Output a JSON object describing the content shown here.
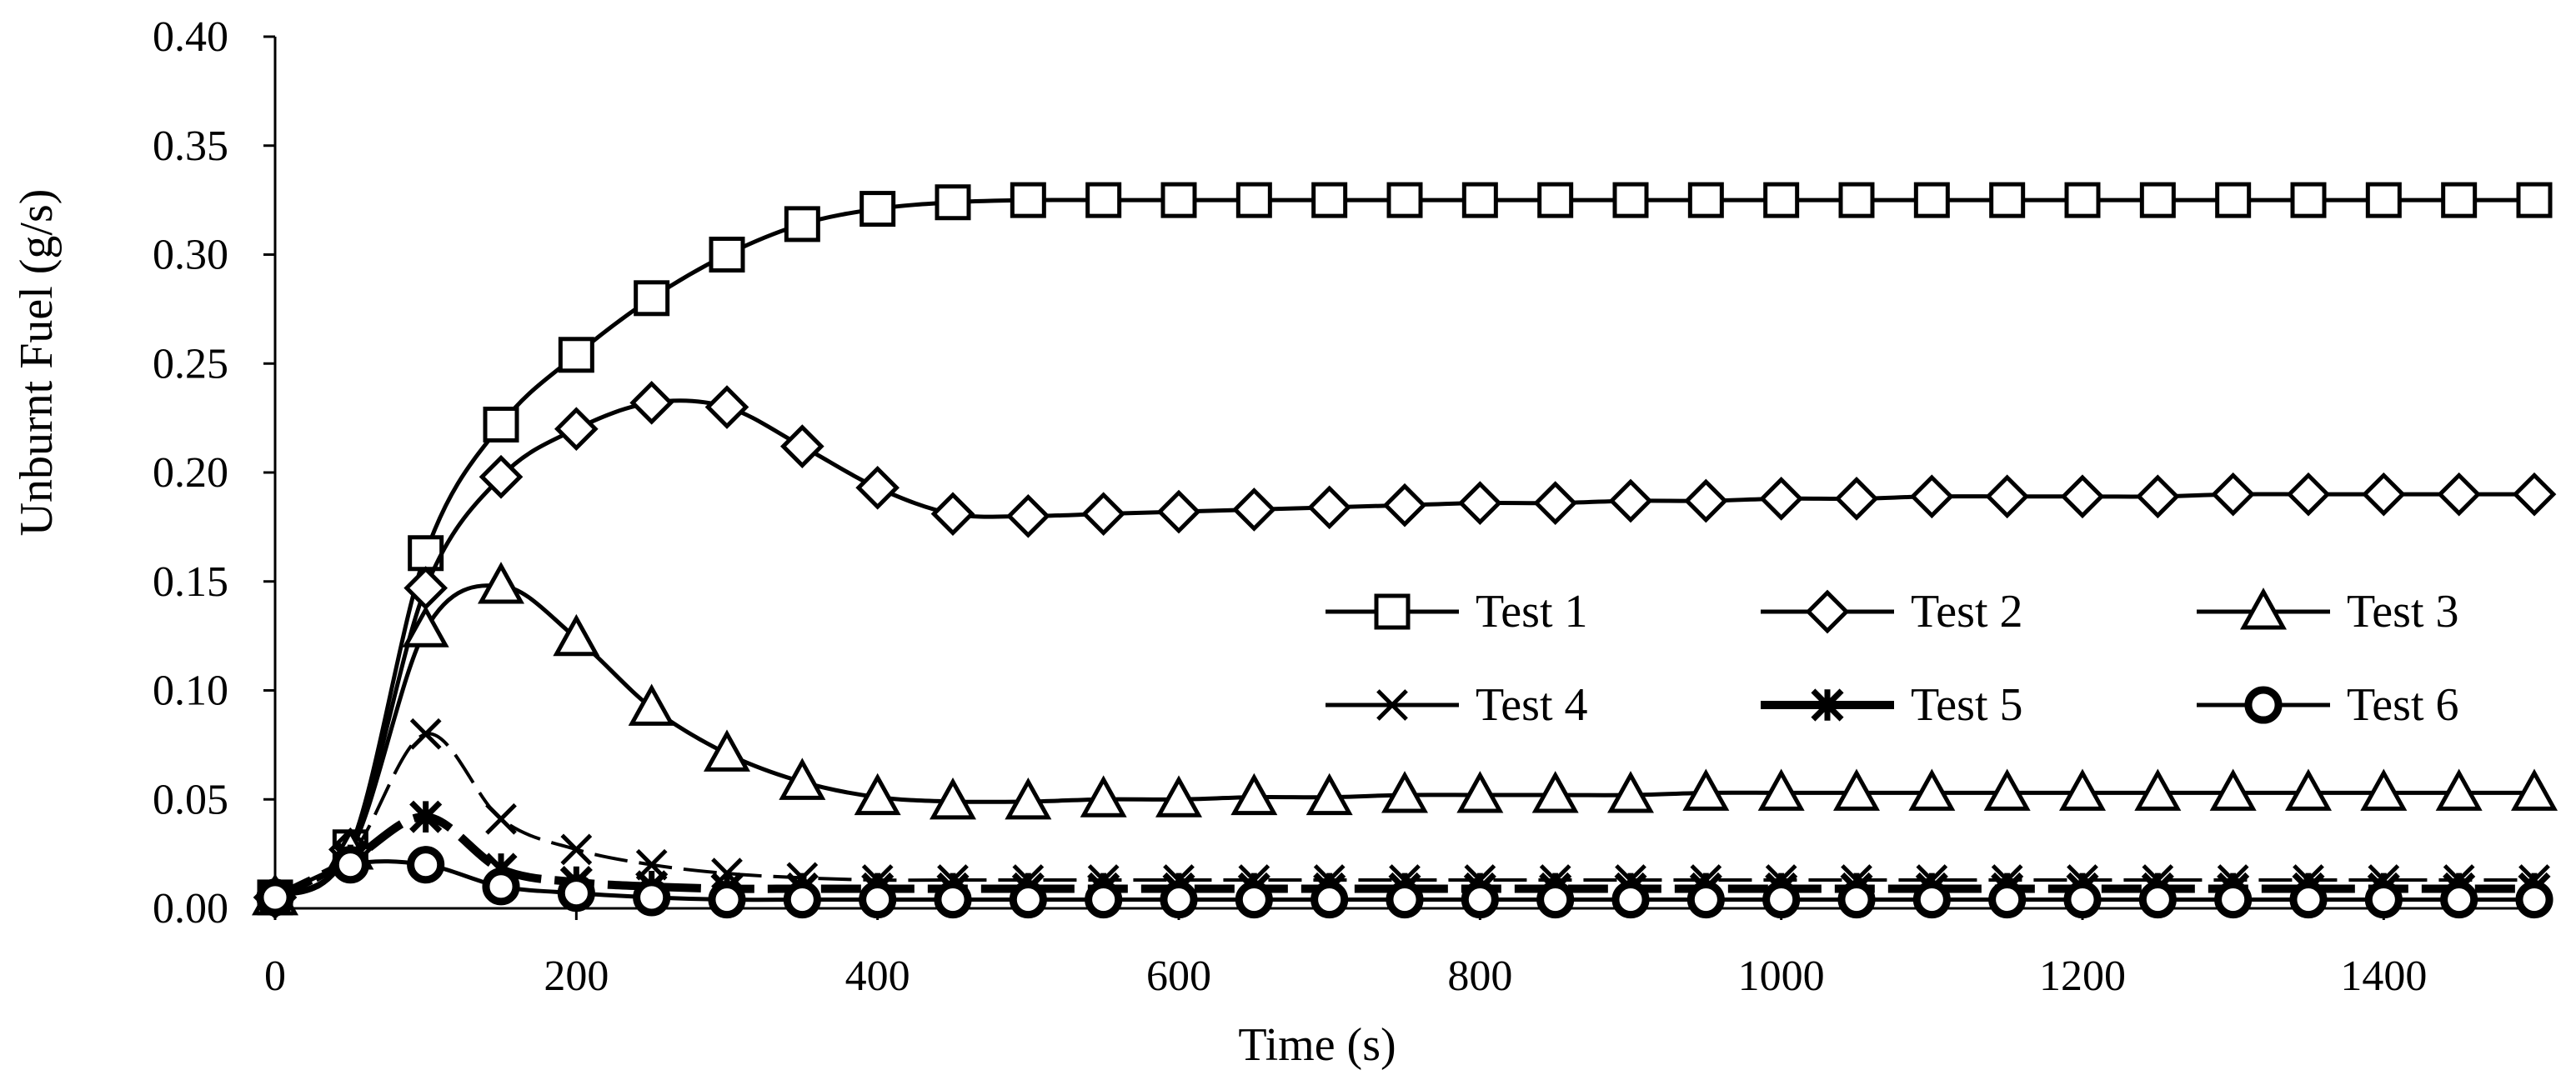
{
  "chart_data": {
    "type": "line",
    "title": "",
    "xlabel": "Time (s)",
    "ylabel": "Unburnt Fuel (g/s)",
    "xlim": [
      0,
      1500
    ],
    "ylim": [
      0,
      0.4
    ],
    "xticks": [
      0,
      200,
      400,
      600,
      800,
      1000,
      1200,
      1400
    ],
    "xtick_labels": [
      "0",
      "200",
      "400",
      "600",
      "800",
      "1000",
      "1200",
      "1400"
    ],
    "yticks": [
      0,
      0.05,
      0.1,
      0.15,
      0.2,
      0.25,
      0.3,
      0.35,
      0.4
    ],
    "ytick_labels": [
      "0.00",
      "0.05",
      "0.10",
      "0.15",
      "0.20",
      "0.25",
      "0.30",
      "0.35",
      "0.40"
    ],
    "grid": false,
    "legend_position": "center-right",
    "x": [
      0,
      50,
      100,
      150,
      200,
      250,
      300,
      350,
      400,
      450,
      500,
      550,
      600,
      650,
      700,
      750,
      800,
      850,
      900,
      950,
      1000,
      1050,
      1100,
      1150,
      1200,
      1250,
      1300,
      1350,
      1400,
      1450,
      1500
    ],
    "series": [
      {
        "name": "Test 1",
        "marker": "square",
        "values": [
          0.005,
          0.028,
          0.163,
          0.222,
          0.254,
          0.28,
          0.3,
          0.314,
          0.321,
          0.324,
          0.325,
          0.325,
          0.325,
          0.325,
          0.325,
          0.325,
          0.325,
          0.325,
          0.325,
          0.325,
          0.325,
          0.325,
          0.325,
          0.325,
          0.325,
          0.325,
          0.325,
          0.325,
          0.325,
          0.325,
          0.325
        ]
      },
      {
        "name": "Test 2",
        "marker": "diamond",
        "values": [
          0.005,
          0.027,
          0.147,
          0.198,
          0.22,
          0.232,
          0.23,
          0.212,
          0.193,
          0.181,
          0.18,
          0.181,
          0.182,
          0.183,
          0.184,
          0.185,
          0.186,
          0.186,
          0.187,
          0.187,
          0.188,
          0.188,
          0.189,
          0.189,
          0.189,
          0.189,
          0.19,
          0.19,
          0.19,
          0.19,
          0.19
        ]
      },
      {
        "name": "Test 3",
        "marker": "triangle",
        "values": [
          0.005,
          0.026,
          0.128,
          0.148,
          0.124,
          0.092,
          0.071,
          0.058,
          0.051,
          0.049,
          0.049,
          0.05,
          0.05,
          0.051,
          0.051,
          0.052,
          0.052,
          0.052,
          0.052,
          0.053,
          0.053,
          0.053,
          0.053,
          0.053,
          0.053,
          0.053,
          0.053,
          0.053,
          0.053,
          0.053,
          0.053
        ]
      },
      {
        "name": "Test 4",
        "marker": "x",
        "values": [
          0.005,
          0.024,
          0.08,
          0.041,
          0.027,
          0.02,
          0.016,
          0.014,
          0.013,
          0.013,
          0.013,
          0.013,
          0.013,
          0.013,
          0.013,
          0.013,
          0.013,
          0.013,
          0.013,
          0.013,
          0.013,
          0.013,
          0.013,
          0.013,
          0.013,
          0.013,
          0.013,
          0.013,
          0.013,
          0.013,
          0.013
        ]
      },
      {
        "name": "Test 5",
        "marker": "star",
        "values": [
          0.005,
          0.022,
          0.042,
          0.018,
          0.012,
          0.01,
          0.009,
          0.009,
          0.009,
          0.009,
          0.009,
          0.009,
          0.009,
          0.009,
          0.009,
          0.009,
          0.009,
          0.009,
          0.009,
          0.009,
          0.009,
          0.009,
          0.009,
          0.009,
          0.009,
          0.009,
          0.009,
          0.009,
          0.009,
          0.009,
          0.009
        ]
      },
      {
        "name": "Test 6",
        "marker": "circle",
        "values": [
          0.005,
          0.02,
          0.02,
          0.01,
          0.007,
          0.005,
          0.004,
          0.004,
          0.004,
          0.004,
          0.004,
          0.004,
          0.004,
          0.004,
          0.004,
          0.004,
          0.004,
          0.004,
          0.004,
          0.004,
          0.004,
          0.004,
          0.004,
          0.004,
          0.004,
          0.004,
          0.004,
          0.004,
          0.004,
          0.004,
          0.004
        ]
      }
    ]
  }
}
